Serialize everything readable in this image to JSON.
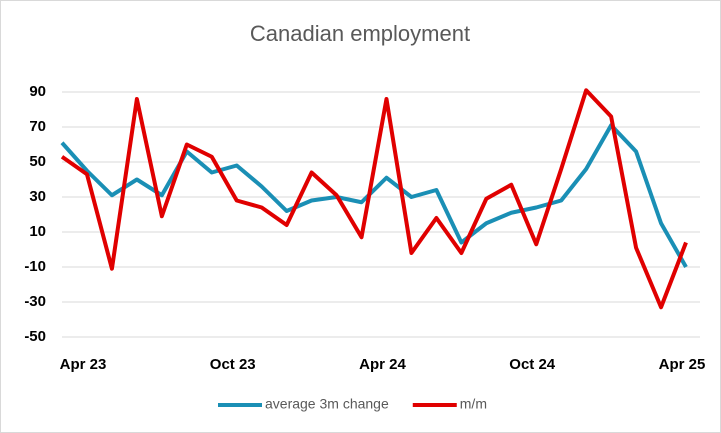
{
  "chart_data": {
    "type": "line",
    "title": "Canadian employment",
    "categories": [
      null,
      "Apr 23",
      null,
      null,
      null,
      null,
      null,
      "Oct 23",
      null,
      null,
      null,
      null,
      null,
      "Apr 24",
      null,
      null,
      null,
      null,
      null,
      "Oct 24",
      null,
      null,
      null,
      null,
      null,
      "Apr 25"
    ],
    "series": [
      {
        "name": "average 3m change",
        "color": "#1a8fb5",
        "values": [
          61,
          45,
          31,
          40,
          31,
          56,
          44,
          48,
          36,
          22,
          28,
          30,
          27,
          41,
          30,
          34,
          4,
          15,
          21,
          24,
          28,
          46,
          71,
          56,
          15,
          -10
        ]
      },
      {
        "name": "m/m",
        "color": "#e00000",
        "values": [
          53,
          43,
          -11,
          86,
          19,
          60,
          53,
          28,
          24,
          14,
          44,
          31,
          7,
          86,
          -2,
          18,
          -2,
          29,
          37,
          3,
          46,
          91,
          76,
          1,
          -33,
          4
        ]
      }
    ],
    "ylim": [
      -50,
      90
    ],
    "yticks": [
      -50,
      -30,
      -10,
      10,
      30,
      50,
      70,
      90
    ],
    "grid": true
  }
}
